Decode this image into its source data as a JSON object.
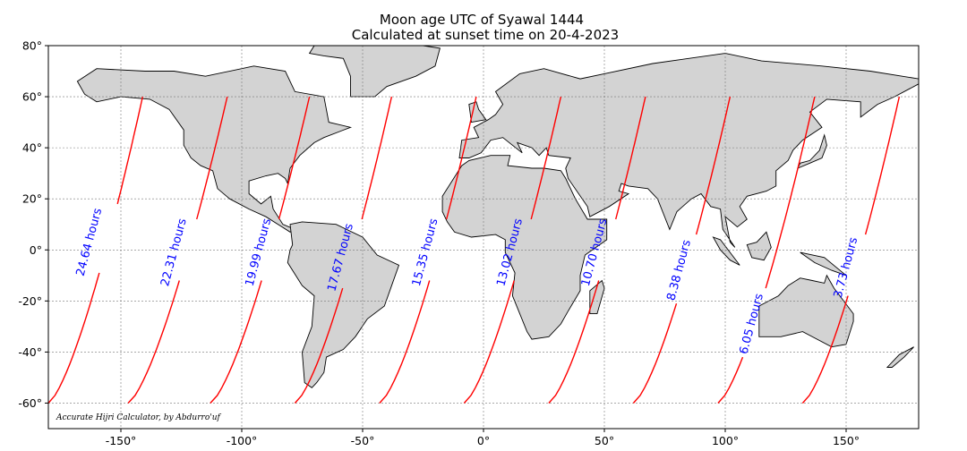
{
  "title": {
    "line1": "Moon age UTC of Syawal 1444",
    "line2": "Calculated at sunset time on 20-4-2023"
  },
  "credit": "Accurate Hijri Calculator, by Abdurro'uf",
  "axes": {
    "x_range": [
      -180,
      180
    ],
    "y_range": [
      -70,
      80
    ],
    "x_ticks": [
      {
        "value": -150,
        "label": "-150°"
      },
      {
        "value": -100,
        "label": "-100°"
      },
      {
        "value": -50,
        "label": "-50°"
      },
      {
        "value": 0,
        "label": "0°"
      },
      {
        "value": 50,
        "label": "50°"
      },
      {
        "value": 100,
        "label": "100°"
      },
      {
        "value": 150,
        "label": "150°"
      }
    ],
    "y_ticks": [
      {
        "value": 80,
        "label": "80°"
      },
      {
        "value": 60,
        "label": "60°"
      },
      {
        "value": 40,
        "label": "40°"
      },
      {
        "value": 20,
        "label": "20°"
      },
      {
        "value": 0,
        "label": "0°"
      },
      {
        "value": -20,
        "label": "-20°"
      },
      {
        "value": -40,
        "label": "-40°"
      },
      {
        "value": -60,
        "label": "-60°"
      }
    ],
    "grid": true
  },
  "colors": {
    "land": "#d3d3d3",
    "contour": "#ff0000",
    "label": "#0000ff"
  },
  "contours": [
    {
      "label": "24.64 hours",
      "lon_south": -180,
      "lon_north": -141,
      "label_lon": -163,
      "label_lat": 3
    },
    {
      "label": "22.31 hours",
      "lon_south": -147,
      "lon_north": -106,
      "label_lon": -128,
      "label_lat": -1
    },
    {
      "label": "19.99 hours",
      "lon_south": -113,
      "lon_north": -72,
      "label_lon": -93,
      "label_lat": -1
    },
    {
      "label": "17.67 hours",
      "lon_south": -78,
      "lon_north": -38,
      "label_lon": -59,
      "label_lat": -3
    },
    {
      "label": "15.35 hours",
      "lon_south": -43,
      "lon_north": -3,
      "label_lon": -24,
      "label_lat": -1
    },
    {
      "label": "13.02 hours",
      "lon_south": -8,
      "lon_north": 32,
      "label_lon": 11,
      "label_lat": -1
    },
    {
      "label": "10.70 hours",
      "lon_south": 27,
      "lon_north": 67,
      "label_lon": 46,
      "label_lat": -1
    },
    {
      "label": "8.38 hours",
      "lon_south": 62,
      "lon_north": 102,
      "label_lon": 81,
      "label_lat": -8
    },
    {
      "label": "6.05 hours",
      "lon_south": 97,
      "lon_north": 137,
      "label_lon": 111,
      "label_lat": -29
    },
    {
      "label": "3.73 hours",
      "lon_south": 132,
      "lon_north": 172,
      "label_lon": 150,
      "label_lat": -7
    }
  ]
}
